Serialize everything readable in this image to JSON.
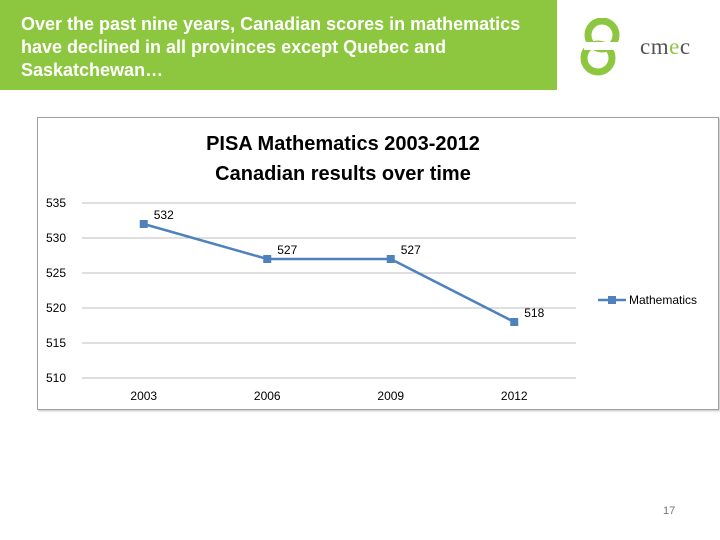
{
  "banner": {
    "text": "Over the past nine years, Canadian scores in mathematics have declined in all provinces except Quebec and Saskatchewan…",
    "color": "#8dc63f"
  },
  "logo": {
    "text_main": "cm",
    "text_accent": "e",
    "text_end": "c",
    "accent_color": "#8dc63f"
  },
  "page_number": "17",
  "chart_data": {
    "type": "line",
    "title_lines": [
      "PISA Mathematics 2003-2012",
      "Canadian results over time"
    ],
    "categories": [
      "2003",
      "2006",
      "2009",
      "2012"
    ],
    "series": [
      {
        "name": "Mathematics",
        "values": [
          532,
          527,
          527,
          518
        ],
        "color": "#4f81bd"
      }
    ],
    "data_labels": [
      "532",
      "527",
      "527",
      "518"
    ],
    "y_ticks": [
      "535",
      "530",
      "525",
      "520",
      "515",
      "510"
    ],
    "ylim": [
      510,
      535
    ],
    "grid": true,
    "legend_position": "right"
  }
}
